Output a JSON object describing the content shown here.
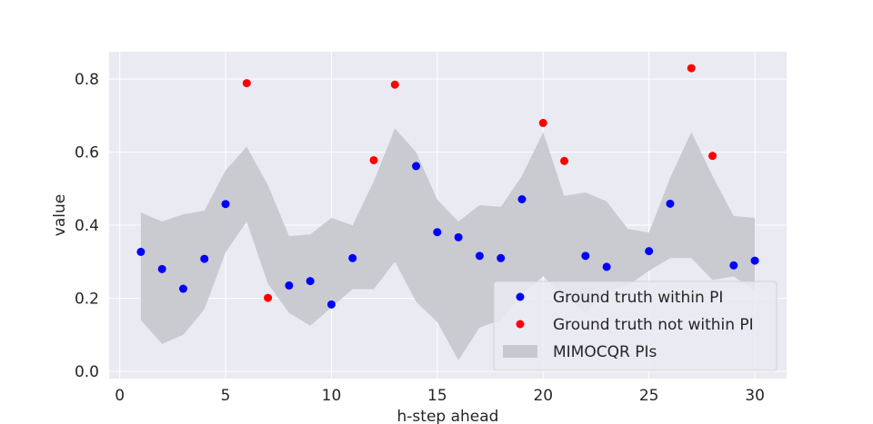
{
  "chart_data": {
    "type": "scatter",
    "title": "",
    "xlabel": "h-step ahead",
    "ylabel": "value",
    "xlim": [
      -0.5,
      31.5
    ],
    "ylim": [
      -0.02,
      0.875
    ],
    "x_ticks": [
      0,
      5,
      10,
      15,
      20,
      25,
      30
    ],
    "x_tick_labels": [
      "0",
      "5",
      "10",
      "15",
      "20",
      "25",
      "30"
    ],
    "y_ticks": [
      0.0,
      0.2,
      0.4,
      0.6,
      0.8
    ],
    "y_tick_labels": [
      "0.0",
      "0.2",
      "0.4",
      "0.6",
      "0.8"
    ],
    "grid": true,
    "background_color": "#eaeaf2",
    "legend_position": "lower-right",
    "legend": [
      {
        "label": "Ground truth within PI",
        "marker": "dot",
        "color": "#0000ff"
      },
      {
        "label": "Ground truth not within PI",
        "marker": "dot",
        "color": "#ff0000"
      },
      {
        "label": "MIMOCQR PIs",
        "marker": "patch",
        "color": "#c8c8cf"
      }
    ],
    "band": {
      "name": "MIMOCQR PIs",
      "color": "#c8c8cf",
      "x": [
        1,
        2,
        3,
        4,
        5,
        6,
        7,
        8,
        9,
        10,
        11,
        12,
        13,
        14,
        15,
        16,
        17,
        18,
        19,
        20,
        21,
        22,
        23,
        24,
        25,
        26,
        27,
        28,
        29,
        30
      ],
      "lower": [
        0.14,
        0.075,
        0.1,
        0.17,
        0.325,
        0.41,
        0.24,
        0.16,
        0.125,
        0.175,
        0.225,
        0.225,
        0.3,
        0.19,
        0.135,
        0.03,
        0.12,
        0.14,
        0.21,
        0.26,
        0.205,
        0.16,
        0.22,
        0.235,
        0.275,
        0.31,
        0.31,
        0.25,
        0.26,
        0.22
      ],
      "upper": [
        0.435,
        0.41,
        0.43,
        0.44,
        0.55,
        0.615,
        0.51,
        0.37,
        0.375,
        0.42,
        0.4,
        0.52,
        0.665,
        0.6,
        0.47,
        0.41,
        0.455,
        0.45,
        0.535,
        0.655,
        0.48,
        0.49,
        0.465,
        0.39,
        0.38,
        0.53,
        0.655,
        0.535,
        0.425,
        0.42
      ]
    },
    "series": [
      {
        "name": "Ground truth within PI",
        "color": "#0000ff",
        "x": [
          1,
          2,
          3,
          4,
          5,
          8,
          9,
          10,
          11,
          14,
          15,
          16,
          17,
          18,
          19,
          22,
          23,
          25,
          26,
          29,
          30
        ],
        "y": [
          0.327,
          0.28,
          0.226,
          0.308,
          0.458,
          0.235,
          0.247,
          0.183,
          0.31,
          0.562,
          0.381,
          0.367,
          0.316,
          0.31,
          0.471,
          0.316,
          0.286,
          0.329,
          0.459,
          0.29,
          0.303
        ]
      },
      {
        "name": "Ground truth not within PI",
        "color": "#ff0000",
        "x": [
          6,
          7,
          12,
          13,
          20,
          21,
          27,
          28
        ],
        "y": [
          0.789,
          0.201,
          0.578,
          0.785,
          0.68,
          0.576,
          0.83,
          0.59
        ]
      }
    ]
  }
}
